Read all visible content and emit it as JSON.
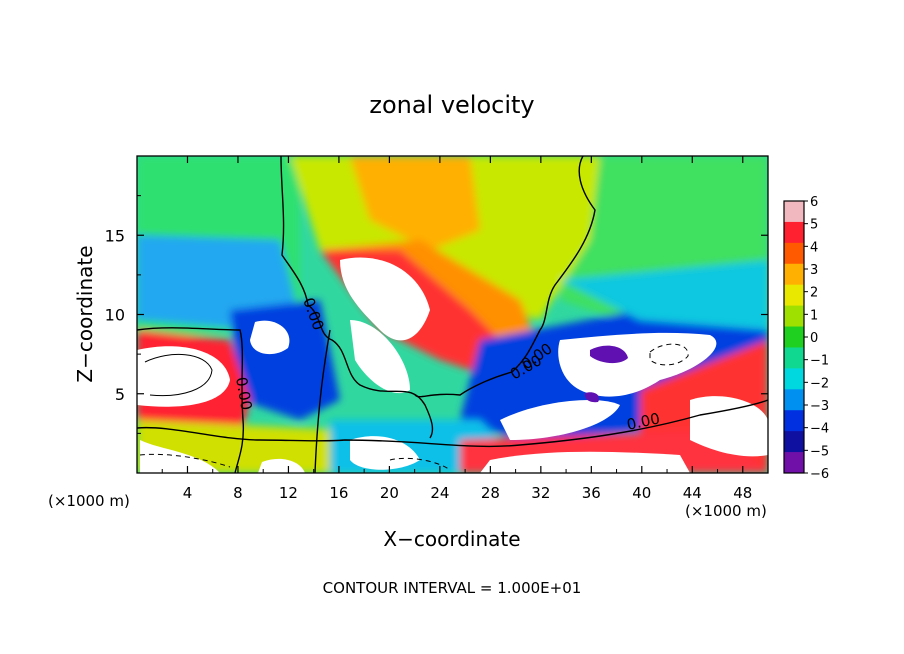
{
  "chart_data": {
    "type": "heatmap",
    "title": "zonal velocity",
    "xlabel": "X−coordinate",
    "ylabel": "Z−coordinate",
    "x_unit_left": "(×1000 m)",
    "x_unit_right": "(×1000 m)",
    "footer": "CONTOUR INTERVAL = 1.000E+01",
    "xlim": [
      0,
      50
    ],
    "ylim": [
      0,
      20
    ],
    "x_ticks": [
      4,
      8,
      12,
      16,
      20,
      24,
      28,
      32,
      36,
      40,
      44,
      48
    ],
    "x_tick_labels": [
      "4",
      "8",
      "12",
      "16",
      "20",
      "24",
      "28",
      "32",
      "36",
      "40",
      "44",
      "48"
    ],
    "y_ticks": [
      5,
      10,
      15
    ],
    "y_tick_labels": [
      "5",
      "10",
      "15"
    ],
    "colorbar": {
      "range": [
        -6,
        6
      ],
      "tick_labels": [
        "6",
        "5",
        "4",
        "3",
        "2",
        "1",
        "0",
        "−1",
        "−2",
        "−3",
        "−4",
        "−5",
        "−6"
      ],
      "tick_values": [
        6,
        5,
        4,
        3,
        2,
        1,
        0,
        -1,
        -2,
        -3,
        -4,
        -5,
        -6
      ],
      "colors": [
        "#f2b8c0",
        "#ff2030",
        "#ff5a00",
        "#ffb000",
        "#e8e800",
        "#a0e000",
        "#20d020",
        "#10d890",
        "#00d8e0",
        "#0090f0",
        "#0030e0",
        "#1010a0",
        "#7010a8"
      ]
    },
    "contour_labels": [
      "0.00",
      "0.00",
      "0.00",
      "0.00",
      "0.00"
    ],
    "grid": false
  }
}
